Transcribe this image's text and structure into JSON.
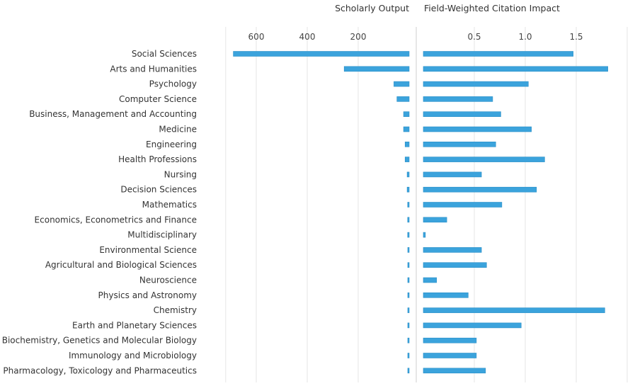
{
  "chart_data": {
    "type": "bar",
    "orientation": "horizontal",
    "categories": [
      "Social Sciences",
      "Arts and Humanities",
      "Psychology",
      "Computer Science",
      "Business, Management and Accounting",
      "Medicine",
      "Engineering",
      "Health Professions",
      "Nursing",
      "Decision Sciences",
      "Mathematics",
      "Economics, Econometrics and Finance",
      "Multidisciplinary",
      "Environmental Science",
      "Agricultural and Biological Sciences",
      "Neuroscience",
      "Physics and Astronomy",
      "Chemistry",
      "Earth and Planetary Sciences",
      "Biochemistry, Genetics and Molecular Biology",
      "Immunology and Microbiology",
      "Pharmacology, Toxicology and Pharmaceutics"
    ],
    "panels": [
      {
        "title": "Scholarly Output",
        "direction": "reversed",
        "xlim": [
          0,
          720
        ],
        "ticks": [
          "600",
          "400",
          "200"
        ],
        "tick_values": [
          600,
          400,
          200
        ],
        "values": [
          690,
          255,
          60,
          48,
          22,
          22,
          16,
          16,
          8,
          8,
          6,
          6,
          6,
          5,
          5,
          5,
          5,
          5,
          5,
          5,
          5,
          5
        ]
      },
      {
        "title": "Field-Weighted Citation Impact",
        "direction": "normal",
        "xlim": [
          0,
          2.0
        ],
        "ticks": [
          "0.5",
          "1.0",
          "1.5"
        ],
        "tick_values": [
          0.5,
          1.0,
          1.5
        ],
        "values": [
          1.47,
          1.81,
          1.03,
          0.68,
          0.76,
          1.06,
          0.71,
          1.19,
          0.57,
          1.11,
          0.77,
          0.23,
          0.02,
          0.57,
          0.62,
          0.13,
          0.44,
          1.78,
          0.96,
          0.52,
          0.52,
          0.61
        ]
      }
    ],
    "grid": true,
    "legend": "none"
  },
  "colors": {
    "bar": "#3ba3dc",
    "bar_edge": "#2b8fc7",
    "grid": "#e6e6e6",
    "text": "#333333"
  }
}
